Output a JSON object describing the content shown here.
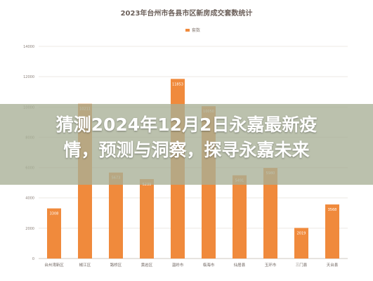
{
  "chart_data": {
    "type": "bar",
    "title": "2023年台州市各县市区新房成交套数统计",
    "legend": [
      "套数"
    ],
    "categories": [
      "台州湾新区",
      "椒江区",
      "路桥区",
      "黄岩区",
      "温岭市",
      "临海市",
      "仙居县",
      "玉环市",
      "三门县",
      "天台县"
    ],
    "series": [
      {
        "name": "套数",
        "values": [
          3308,
          10211,
          5673,
          5239,
          11853,
          10050,
          5491,
          5980,
          2019,
          3568
        ]
      }
    ],
    "labels": [
      "3308",
      "10211",
      "5673",
      "5239",
      "11853",
      "10050",
      "5491",
      "5980",
      "2019",
      "3568"
    ],
    "yticks": [
      "0",
      "2000",
      "4000",
      "6000",
      "8000",
      "10000",
      "12000",
      "14000"
    ],
    "ylim": [
      0,
      14000
    ],
    "bar_color": "#f08a3c",
    "grid": true,
    "legend_position": "top-center"
  },
  "overlay": {
    "line1": "猜测2024年12月2日永嘉最新疫",
    "line2": "情，预测与洞察，探寻永嘉未来"
  }
}
